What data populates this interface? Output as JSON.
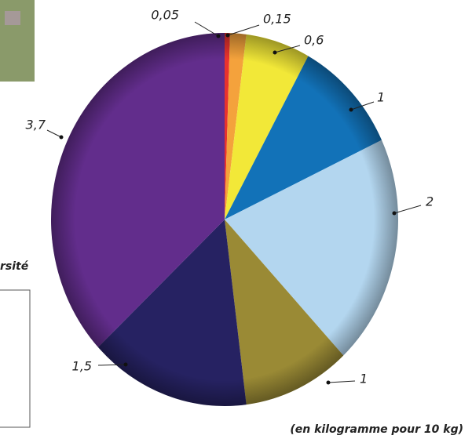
{
  "chart_data": {
    "type": "pie",
    "values": [
      0.05,
      0.15,
      0.6,
      1,
      2,
      1,
      1.5,
      3.7
    ],
    "value_labels": [
      "0,05",
      "0,15",
      "0,6",
      "1",
      "2",
      "1",
      "1,5",
      "3,7"
    ],
    "colors": [
      "#e8322e",
      "#f4a23c",
      "#f2e838",
      "#1272b8",
      "#b3d6ef",
      "#9a8a35",
      "#262262",
      "#622d8c"
    ],
    "note": "(en kilogramme  pour 10 kg)",
    "annotations": [
      "rsité"
    ]
  }
}
